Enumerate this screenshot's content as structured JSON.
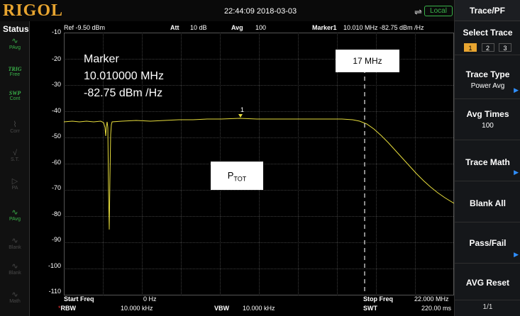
{
  "header": {
    "logo": "RIGOL",
    "clock": "22:44:09 2018-03-03",
    "usb_icon": "usb-icon",
    "local_badge": "Local"
  },
  "status": {
    "title": "Status",
    "items": [
      {
        "top": "PAvg",
        "glyph": "wave-icon",
        "active": true
      },
      {
        "top": "TRIG",
        "sub": "Free",
        "active": true
      },
      {
        "top": "SWP",
        "sub": "Cont",
        "active": true
      },
      {
        "sub": "Corr",
        "active": false
      },
      {
        "sub": "S.T.",
        "active": false
      },
      {
        "sub": "PA",
        "active": false
      },
      {
        "sub": "PAvg",
        "active": true
      },
      {
        "sub": "Blank",
        "active": false
      },
      {
        "sub": "Blank",
        "active": false
      },
      {
        "sub": "Math",
        "active": false
      }
    ]
  },
  "plot_header": {
    "ref": "Ref -9.50 dBm",
    "att_label": "Att",
    "att_value": "10 dB",
    "avg_label": "Avg",
    "avg_value": "100",
    "marker_label": "Marker1",
    "marker_value": "10.010 MHz  -82.75 dBm /Hz"
  },
  "y_ticks": [
    "-10",
    "-20",
    "-30",
    "-40",
    "-50",
    "-60",
    "-70",
    "-80",
    "-90",
    "-100",
    "-110"
  ],
  "footer": {
    "start_label": "Start Freq",
    "start_value": "0 Hz",
    "stop_label": "Stop Freq",
    "stop_value": "22.000 MHz",
    "rbw_label": "RBW",
    "rbw_value": "10.000 kHz",
    "vbw_label": "VBW",
    "vbw_value": "10.000 kHz",
    "swt_label": "SWT",
    "swt_value": "220.00 ms"
  },
  "marker_readout": {
    "title": "Marker",
    "freq": "10.010000 MHz",
    "level": "-82.75 dBm /Hz",
    "marker_number": "1"
  },
  "annotations": {
    "freq_label": "17 MHz",
    "ptot_main": "P",
    "ptot_sub": "TOT"
  },
  "menu": {
    "title": "Trace/PF",
    "select_trace": "Select Trace",
    "trace_numbers": [
      "1",
      "2",
      "3"
    ],
    "trace_type": "Trace Type",
    "trace_type_value": "Power Avg",
    "avg_times": "Avg Times",
    "avg_times_value": "100",
    "trace_math": "Trace Math",
    "blank_all": "Blank All",
    "pass_fail": "Pass/Fail",
    "avg_reset": "AVG Reset",
    "page": "1/1"
  },
  "colors": {
    "trace": "#e6dc3c",
    "accent": "#e8a530",
    "local": "#3ab34a",
    "arrow": "#2f8fff"
  }
}
